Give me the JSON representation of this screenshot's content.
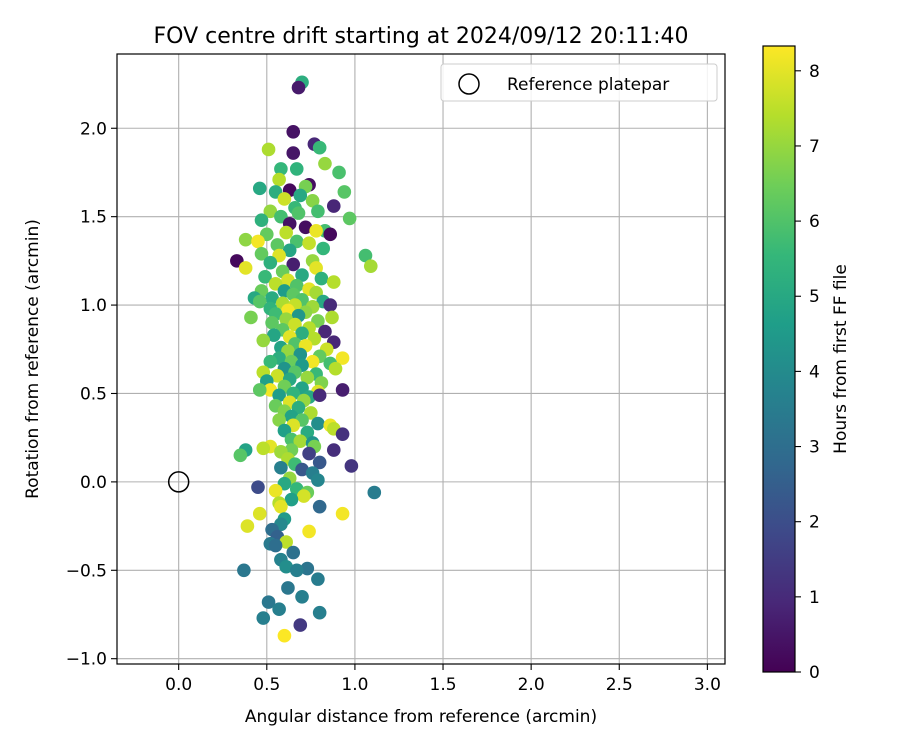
{
  "chart_data": {
    "type": "scatter",
    "title": "FOV centre drift starting at 2024/09/12 20:11:40",
    "xlabel": "Angular distance from reference (arcmin)",
    "ylabel": "Rotation from reference (arcmin)",
    "xlim": [
      -0.35,
      3.1
    ],
    "ylim": [
      -1.03,
      2.42
    ],
    "xticks": [
      0.0,
      0.5,
      1.0,
      1.5,
      2.0,
      2.5,
      3.0
    ],
    "xtick_labels": [
      "0.0",
      "0.5",
      "1.0",
      "1.5",
      "2.0",
      "2.5",
      "3.0"
    ],
    "yticks": [
      -1.0,
      -0.5,
      0.0,
      0.5,
      1.0,
      1.5,
      2.0
    ],
    "ytick_labels": [
      "−1.0",
      "−0.5",
      "0.0",
      "0.5",
      "1.0",
      "1.5",
      "2.0"
    ],
    "grid": true,
    "legend": {
      "position": "top-right",
      "entries": [
        "Reference platepar"
      ]
    },
    "reference_point": {
      "x": 0.0,
      "y": 0.0,
      "label": "Reference platepar"
    },
    "colorbar": {
      "label": "Hours from first FF file",
      "range": [
        0,
        8.33
      ],
      "ticks": [
        0,
        1,
        2,
        3,
        4,
        5,
        6,
        7,
        8
      ],
      "tick_labels": [
        "0",
        "1",
        "2",
        "3",
        "4",
        "5",
        "6",
        "7",
        "8"
      ],
      "colormap": "viridis",
      "stops": [
        "#440154",
        "#482878",
        "#3e4989",
        "#31688e",
        "#26828e",
        "#1f9e89",
        "#35b779",
        "#6ece58",
        "#b5de2b",
        "#fde725"
      ]
    },
    "points": [
      [
        0.7,
        2.26,
        5.2
      ],
      [
        0.68,
        2.23,
        0.6
      ],
      [
        0.65,
        1.98,
        0.4
      ],
      [
        0.77,
        1.91,
        0.9
      ],
      [
        0.8,
        1.89,
        5.6
      ],
      [
        0.51,
        1.88,
        7.3
      ],
      [
        0.65,
        1.86,
        0.5
      ],
      [
        0.83,
        1.8,
        7.0
      ],
      [
        0.91,
        1.75,
        5.9
      ],
      [
        0.67,
        1.77,
        5.4
      ],
      [
        0.58,
        1.77,
        5.5
      ],
      [
        0.57,
        1.71,
        7.4
      ],
      [
        0.74,
        1.68,
        0.3
      ],
      [
        0.72,
        1.67,
        6.6
      ],
      [
        0.46,
        1.66,
        5.0
      ],
      [
        0.63,
        1.65,
        0.2
      ],
      [
        0.55,
        1.64,
        5.2
      ],
      [
        0.94,
        1.64,
        6.1
      ],
      [
        0.69,
        1.62,
        5.0
      ],
      [
        0.6,
        1.6,
        7.7
      ],
      [
        0.76,
        1.59,
        6.8
      ],
      [
        0.88,
        1.56,
        0.9
      ],
      [
        0.66,
        1.55,
        5.6
      ],
      [
        0.79,
        1.53,
        5.8
      ],
      [
        0.52,
        1.53,
        7.0
      ],
      [
        0.68,
        1.52,
        6.0
      ],
      [
        0.58,
        1.5,
        5.8
      ],
      [
        0.97,
        1.49,
        6.2
      ],
      [
        0.47,
        1.48,
        5.3
      ],
      [
        0.63,
        1.46,
        0.4
      ],
      [
        0.72,
        1.44,
        0.3
      ],
      [
        0.83,
        1.42,
        5.8
      ],
      [
        0.78,
        1.42,
        8.1
      ],
      [
        0.86,
        1.4,
        0.2
      ],
      [
        0.61,
        1.41,
        7.5
      ],
      [
        0.5,
        1.4,
        6.3
      ],
      [
        0.38,
        1.37,
        6.9
      ],
      [
        0.45,
        1.36,
        8.2
      ],
      [
        0.67,
        1.36,
        5.9
      ],
      [
        0.74,
        1.35,
        7.6
      ],
      [
        0.56,
        1.34,
        6.2
      ],
      [
        0.82,
        1.32,
        5.5
      ],
      [
        0.63,
        1.31,
        4.9
      ],
      [
        0.47,
        1.29,
        6.3
      ],
      [
        0.57,
        1.28,
        7.9
      ],
      [
        1.06,
        1.28,
        5.8
      ],
      [
        0.33,
        1.25,
        0.2
      ],
      [
        0.76,
        1.25,
        7.0
      ],
      [
        0.52,
        1.24,
        5.3
      ],
      [
        0.65,
        1.23,
        0.7
      ],
      [
        1.09,
        1.22,
        7.2
      ],
      [
        0.38,
        1.21,
        8.0
      ],
      [
        0.78,
        1.21,
        8.0
      ],
      [
        0.59,
        1.19,
        6.4
      ],
      [
        0.7,
        1.17,
        5.0
      ],
      [
        0.49,
        1.16,
        5.6
      ],
      [
        0.81,
        1.15,
        5.3
      ],
      [
        0.62,
        1.14,
        7.8
      ],
      [
        0.88,
        1.13,
        7.4
      ],
      [
        0.55,
        1.12,
        7.5
      ],
      [
        0.67,
        1.11,
        6.0
      ],
      [
        0.74,
        1.09,
        8.0
      ],
      [
        0.47,
        1.08,
        6.4
      ],
      [
        0.6,
        1.08,
        4.6
      ],
      [
        0.78,
        1.07,
        7.2
      ],
      [
        0.65,
        1.06,
        6.2
      ],
      [
        0.53,
        1.04,
        5.1
      ],
      [
        0.43,
        1.04,
        5.0
      ],
      [
        0.7,
        1.03,
        6.0
      ],
      [
        0.82,
        1.02,
        5.0
      ],
      [
        0.46,
        1.02,
        6.1
      ],
      [
        0.59,
        1.01,
        7.3
      ],
      [
        0.86,
        1.0,
        1.0
      ],
      [
        0.66,
        1.0,
        7.6
      ],
      [
        0.76,
        0.99,
        7.1
      ],
      [
        0.52,
        0.98,
        5.4
      ],
      [
        0.62,
        0.97,
        8.2
      ],
      [
        0.72,
        0.96,
        6.9
      ],
      [
        0.55,
        0.95,
        5.7
      ],
      [
        0.68,
        0.94,
        4.4
      ],
      [
        0.41,
        0.93,
        6.6
      ],
      [
        0.87,
        0.93,
        7.3
      ],
      [
        0.61,
        0.92,
        7.0
      ],
      [
        0.79,
        0.91,
        6.6
      ],
      [
        0.53,
        0.9,
        6.2
      ],
      [
        0.66,
        0.89,
        7.7
      ],
      [
        0.74,
        0.87,
        7.4
      ],
      [
        0.59,
        0.86,
        6.2
      ],
      [
        0.83,
        0.85,
        0.9
      ],
      [
        0.7,
        0.84,
        5.2
      ],
      [
        0.54,
        0.83,
        4.9
      ],
      [
        0.63,
        0.82,
        8.0
      ],
      [
        0.77,
        0.81,
        7.4
      ],
      [
        0.48,
        0.8,
        7.0
      ],
      [
        0.88,
        0.79,
        0.9
      ],
      [
        0.66,
        0.78,
        6.0
      ],
      [
        0.72,
        0.77,
        8.1
      ],
      [
        0.58,
        0.76,
        4.8
      ],
      [
        0.84,
        0.75,
        7.7
      ],
      [
        0.62,
        0.74,
        7.0
      ],
      [
        0.69,
        0.72,
        4.3
      ],
      [
        0.8,
        0.71,
        6.3
      ],
      [
        0.57,
        0.7,
        5.2
      ],
      [
        0.93,
        0.7,
        8.2
      ],
      [
        0.52,
        0.68,
        5.6
      ],
      [
        0.64,
        0.68,
        6.4
      ],
      [
        0.76,
        0.68,
        8.2
      ],
      [
        0.86,
        0.67,
        5.8
      ],
      [
        0.7,
        0.66,
        4.5
      ],
      [
        0.6,
        0.64,
        4.3
      ],
      [
        0.89,
        0.64,
        7.4
      ],
      [
        0.48,
        0.62,
        7.5
      ],
      [
        0.66,
        0.62,
        6.1
      ],
      [
        0.78,
        0.61,
        5.6
      ],
      [
        0.56,
        0.6,
        7.7
      ],
      [
        0.73,
        0.59,
        7.0
      ],
      [
        0.63,
        0.58,
        5.0
      ],
      [
        0.5,
        0.57,
        4.7
      ],
      [
        0.81,
        0.56,
        6.7
      ],
      [
        0.6,
        0.54,
        6.5
      ],
      [
        0.7,
        0.53,
        4.8
      ],
      [
        0.52,
        0.52,
        8.2
      ],
      [
        0.46,
        0.52,
        6.2
      ],
      [
        0.79,
        0.51,
        7.9
      ],
      [
        0.93,
        0.52,
        0.7
      ],
      [
        0.65,
        0.5,
        5.4
      ],
      [
        0.57,
        0.49,
        4.6
      ],
      [
        0.74,
        0.48,
        5.0
      ],
      [
        0.8,
        0.49,
        1.0
      ],
      [
        0.63,
        0.45,
        7.9
      ],
      [
        0.71,
        0.46,
        7.0
      ],
      [
        0.55,
        0.43,
        6.4
      ],
      [
        0.68,
        0.42,
        5.2
      ],
      [
        0.6,
        0.4,
        6.7
      ],
      [
        0.75,
        0.39,
        7.3
      ],
      [
        0.64,
        0.37,
        4.8
      ],
      [
        0.57,
        0.35,
        6.8
      ],
      [
        0.7,
        0.35,
        6.1
      ],
      [
        0.79,
        0.33,
        4.1
      ],
      [
        0.86,
        0.32,
        8.1
      ],
      [
        0.65,
        0.32,
        7.9
      ],
      [
        0.88,
        0.3,
        7.5
      ],
      [
        0.6,
        0.29,
        4.7
      ],
      [
        0.73,
        0.28,
        5.1
      ],
      [
        0.93,
        0.27,
        1.2
      ],
      [
        0.64,
        0.24,
        5.9
      ],
      [
        0.69,
        0.23,
        7.2
      ],
      [
        0.76,
        0.22,
        4.3
      ],
      [
        0.52,
        0.2,
        8.0
      ],
      [
        0.77,
        0.2,
        6.6
      ],
      [
        0.48,
        0.19,
        7.5
      ],
      [
        0.38,
        0.18,
        4.8
      ],
      [
        0.64,
        0.18,
        6.5
      ],
      [
        0.58,
        0.17,
        7.1
      ],
      [
        0.74,
        0.16,
        1.6
      ],
      [
        0.88,
        0.18,
        1.1
      ],
      [
        0.35,
        0.15,
        6.1
      ],
      [
        0.62,
        0.13,
        7.3
      ],
      [
        0.8,
        0.11,
        2.3
      ],
      [
        0.66,
        0.1,
        5.7
      ],
      [
        0.98,
        0.09,
        1.3
      ],
      [
        0.58,
        0.08,
        3.6
      ],
      [
        0.7,
        0.07,
        2.3
      ],
      [
        0.76,
        0.05,
        3.6
      ],
      [
        0.63,
        0.02,
        7.0
      ],
      [
        0.79,
        0.01,
        3.8
      ],
      [
        0.6,
        -0.01,
        5.0
      ],
      [
        0.45,
        -0.03,
        1.9
      ],
      [
        0.67,
        -0.04,
        5.5
      ],
      [
        0.55,
        -0.05,
        8.1
      ],
      [
        0.73,
        -0.06,
        6.4
      ],
      [
        1.11,
        -0.06,
        3.5
      ],
      [
        0.71,
        -0.08,
        7.8
      ],
      [
        0.64,
        -0.1,
        4.7
      ],
      [
        0.57,
        -0.12,
        7.4
      ],
      [
        0.8,
        -0.14,
        2.8
      ],
      [
        0.58,
        -0.14,
        8.0
      ],
      [
        0.46,
        -0.18,
        7.9
      ],
      [
        0.93,
        -0.18,
        8.2
      ],
      [
        0.6,
        -0.21,
        4.5
      ],
      [
        0.58,
        -0.24,
        3.9
      ],
      [
        0.39,
        -0.25,
        7.9
      ],
      [
        0.53,
        -0.27,
        3.0
      ],
      [
        0.74,
        -0.28,
        8.2
      ],
      [
        0.56,
        -0.31,
        2.6
      ],
      [
        0.61,
        -0.34,
        7.5
      ],
      [
        0.52,
        -0.35,
        3.4
      ],
      [
        0.55,
        -0.36,
        3.0
      ],
      [
        0.65,
        -0.4,
        3.1
      ],
      [
        0.58,
        -0.44,
        3.7
      ],
      [
        0.61,
        -0.48,
        4.1
      ],
      [
        0.73,
        -0.49,
        3.2
      ],
      [
        0.67,
        -0.5,
        3.6
      ],
      [
        0.37,
        -0.5,
        3.3
      ],
      [
        0.79,
        -0.55,
        3.5
      ],
      [
        0.62,
        -0.6,
        3.3
      ],
      [
        0.7,
        -0.65,
        3.6
      ],
      [
        0.51,
        -0.68,
        3.3
      ],
      [
        0.57,
        -0.72,
        3.6
      ],
      [
        0.8,
        -0.74,
        3.6
      ],
      [
        0.48,
        -0.77,
        3.6
      ],
      [
        0.69,
        -0.81,
        1.4
      ],
      [
        0.6,
        -0.87,
        8.3
      ]
    ]
  }
}
